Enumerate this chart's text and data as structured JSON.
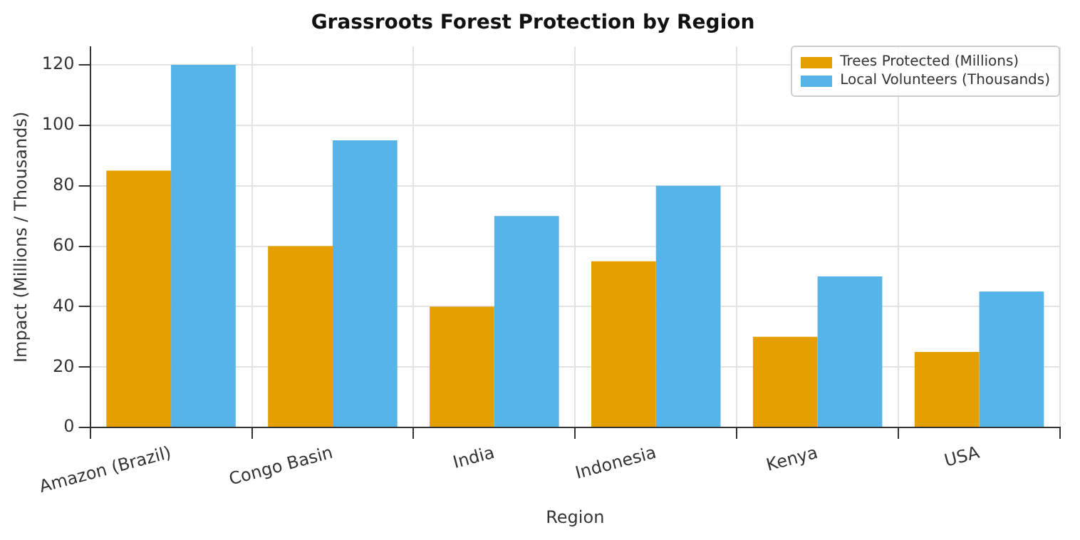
{
  "chart_data": {
    "type": "bar",
    "title": "Grassroots Forest Protection by Region",
    "xlabel": "Region",
    "ylabel": "Impact (Millions / Thousands)",
    "categories": [
      "Amazon (Brazil)",
      "Congo Basin",
      "India",
      "Indonesia",
      "Kenya",
      "USA"
    ],
    "series": [
      {
        "name": "Trees Protected (Millions)",
        "color": "#e69f00",
        "values": [
          85,
          60,
          40,
          55,
          30,
          25
        ]
      },
      {
        "name": "Local Volunteers (Thousands)",
        "color": "#56b4e9",
        "values": [
          120,
          95,
          70,
          80,
          50,
          45
        ]
      }
    ],
    "ylim": [
      0,
      126
    ],
    "yticks": [
      0,
      20,
      40,
      60,
      80,
      100,
      120
    ],
    "grid": true,
    "legend": "top right"
  }
}
